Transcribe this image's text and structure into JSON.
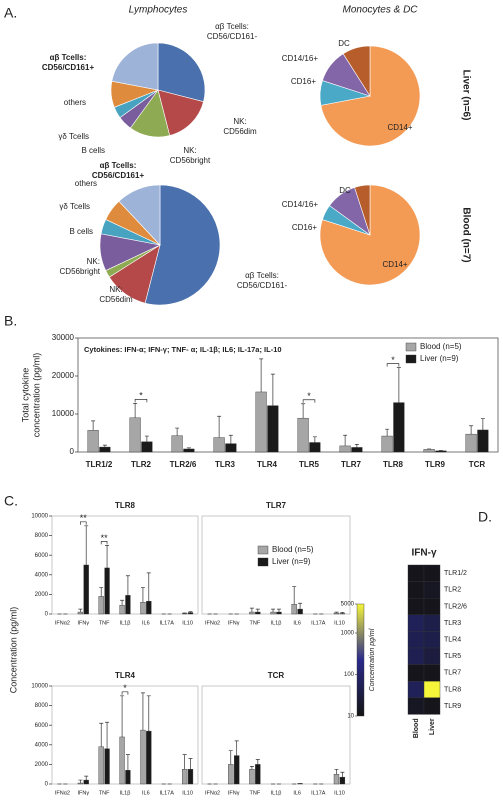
{
  "panel_labels": [
    "A.",
    "B.",
    "C.",
    "D."
  ],
  "panel_a": {
    "columns": [
      "Lymphocytes",
      "Monocytes & DC"
    ],
    "rows": [
      "Liver (n=6)",
      "Blood (n=7)"
    ]
  },
  "panel_c": {
    "ylabel": "Concentration (pg/ml)"
  },
  "chart_data": [
    {
      "type": "pie",
      "categories": [
        [
          "αβ Tcells:",
          "CD56/CD161-"
        ],
        [
          "NK:",
          "CD56dim"
        ],
        [
          "NK:",
          "CD56bright"
        ],
        [
          "B cells"
        ],
        [
          "γδ Tcells"
        ],
        [
          "others"
        ],
        [
          "αβ Tcells:",
          "CD56/CD161+"
        ]
      ],
      "values": [
        29,
        17,
        14,
        5,
        4,
        9,
        22
      ],
      "colors": [
        "#4a71ad",
        "#b5494a",
        "#8eab54",
        "#7a5d9d",
        "#47a3bf",
        "#df8b3d",
        "#9eb3d8"
      ]
    },
    {
      "type": "pie",
      "categories": [
        [
          "CD14+"
        ],
        [
          "CD16+"
        ],
        [
          "CD14/16+"
        ],
        [
          "DC"
        ]
      ],
      "values": [
        72,
        8,
        11,
        9
      ],
      "colors": [
        "#f39a55",
        "#4aa9c6",
        "#8266a8",
        "#b75d2b"
      ]
    },
    {
      "type": "pie",
      "categories": [
        [
          "αβ Tcells:",
          "CD56/CD161-"
        ],
        [
          "NK:",
          "CD56dim"
        ],
        [
          "NK:",
          "CD56bright"
        ],
        [
          "B cells"
        ],
        [
          "γδ Tcells"
        ],
        [
          "others"
        ],
        [
          "αβ Tcells:",
          "CD56/CD161+"
        ]
      ],
      "values": [
        54,
        12,
        2,
        10,
        4,
        6,
        12
      ],
      "colors": [
        "#4a71ad",
        "#b5494a",
        "#8eab54",
        "#7a5d9d",
        "#47a3bf",
        "#df8b3d",
        "#9eb3d8"
      ]
    },
    {
      "type": "pie",
      "categories": [
        [
          "CD14+"
        ],
        [
          "CD16+"
        ],
        [
          "CD14/16+"
        ],
        [
          "DC"
        ]
      ],
      "values": [
        80,
        5,
        10,
        5
      ],
      "colors": [
        "#f39a55",
        "#4aa9c6",
        "#8266a8",
        "#b75d2b"
      ]
    },
    {
      "type": "bar",
      "annotation": "Cytokines: IFN-α; IFN-γ; TNF- α; IL-1β; IL6; IL-17a; IL-10",
      "ylabel": [
        "Total cytokine",
        "concentration (pg/ml)"
      ],
      "categories": [
        "TLR1/2",
        "TLR2",
        "TLR2/6",
        "TLR3",
        "TLR4",
        "TLR5",
        "TLR7",
        "TLR8",
        "TLR9",
        "TCR"
      ],
      "series": [
        {
          "name": "Blood (n=5)",
          "color": "#a6a6a6",
          "values": [
            5700,
            9000,
            4300,
            3800,
            15800,
            8900,
            1600,
            4200,
            700,
            4700
          ],
          "errors": [
            2500,
            3800,
            2000,
            5600,
            8700,
            3800,
            2800,
            1800,
            100,
            2200
          ]
        },
        {
          "name": "Liver (n=9)",
          "color": "#1a1a1a",
          "values": [
            1300,
            2700,
            800,
            2200,
            12200,
            2500,
            1200,
            13000,
            300,
            5800
          ],
          "errors": [
            500,
            1500,
            300,
            2200,
            8300,
            1500,
            800,
            9200,
            100,
            3000
          ]
        }
      ],
      "significance": [
        null,
        "*",
        null,
        null,
        null,
        "*",
        null,
        "*",
        null,
        null
      ],
      "ylim": [
        0,
        30000
      ],
      "yticks": [
        0,
        10000,
        20000,
        30000
      ],
      "legend": "upper right"
    },
    {
      "type": "bar",
      "title": "TLR8",
      "categories": [
        "IFNα2",
        "IFNγ",
        "TNF",
        "IL1β",
        "IL6",
        "IL17A",
        "IL10"
      ],
      "series": [
        {
          "color": "#a6a6a6",
          "values": [
            0,
            200,
            1800,
            900,
            1200,
            0,
            50
          ],
          "errors": [
            0,
            300,
            900,
            500,
            1500,
            0,
            50
          ]
        },
        {
          "color": "#1a1a1a",
          "values": [
            0,
            5000,
            4700,
            1900,
            1300,
            0,
            150
          ],
          "errors": [
            0,
            4000,
            2300,
            2000,
            2900,
            0,
            100
          ]
        }
      ],
      "significance": [
        null,
        "**",
        "**",
        null,
        null,
        null,
        null
      ],
      "ylim": [
        0,
        10000
      ],
      "yticks": [
        0,
        2000,
        4000,
        6000,
        8000,
        10000
      ]
    },
    {
      "type": "bar",
      "title": "TLR7",
      "categories": [
        "IFNα2",
        "IFNγ",
        "TNF",
        "IL1β",
        "IL6",
        "IL17A",
        "IL10"
      ],
      "series": [
        {
          "name": "Blood (n=5)",
          "color": "#a6a6a6",
          "values": [
            0,
            0,
            200,
            200,
            1000,
            0,
            100
          ],
          "errors": [
            0,
            0,
            400,
            300,
            1800,
            0,
            100
          ]
        },
        {
          "name": "Liver (n=9)",
          "color": "#1a1a1a",
          "values": [
            0,
            0,
            200,
            200,
            500,
            0,
            50
          ],
          "errors": [
            0,
            0,
            300,
            300,
            600,
            0,
            100
          ]
        }
      ],
      "ylim": [
        0,
        10000
      ],
      "legend": "upper right"
    },
    {
      "type": "bar",
      "title": "TLR4",
      "categories": [
        "IFNα2",
        "IFNγ",
        "TNF",
        "IL1β",
        "IL6",
        "IL17A",
        "IL10"
      ],
      "series": [
        {
          "color": "#a6a6a6",
          "values": [
            0,
            100,
            3800,
            4800,
            5500,
            0,
            1500
          ],
          "errors": [
            0,
            300,
            2400,
            4200,
            3800,
            0,
            1500
          ]
        },
        {
          "color": "#1a1a1a",
          "values": [
            0,
            400,
            3600,
            1400,
            5400,
            0,
            1500
          ],
          "errors": [
            0,
            400,
            2700,
            1600,
            3600,
            0,
            1100
          ]
        }
      ],
      "significance": [
        null,
        null,
        null,
        "*",
        null,
        null,
        null
      ],
      "ylim": [
        0,
        10000
      ],
      "yticks": [
        0,
        2000,
        4000,
        6000,
        8000,
        10000
      ]
    },
    {
      "type": "bar",
      "title": "TCR",
      "categories": [
        "IFNα2",
        "IFNγ",
        "TNF",
        "IL1β",
        "IL6",
        "IL17A",
        "IL10"
      ],
      "series": [
        {
          "color": "#a6a6a6",
          "values": [
            0,
            2000,
            1500,
            0,
            0,
            0,
            1000
          ],
          "errors": [
            0,
            1400,
            300,
            0,
            0,
            0,
            500
          ]
        },
        {
          "color": "#1a1a1a",
          "values": [
            0,
            2900,
            2000,
            0,
            50,
            0,
            700
          ],
          "errors": [
            0,
            1500,
            500,
            0,
            0,
            0,
            500
          ]
        }
      ],
      "ylim": [
        0,
        10000
      ]
    },
    {
      "type": "heatmap",
      "title": "IFN-γ",
      "x": [
        "Blood",
        "Liver"
      ],
      "y": [
        "TLR1/2",
        "TLR2",
        "TLR2/6",
        "TLR3",
        "TLR4",
        "TLR5",
        "TLR7",
        "TLR8",
        "TLR9"
      ],
      "values": [
        [
          12,
          12
        ],
        [
          12,
          15
        ],
        [
          12,
          12
        ],
        [
          60,
          40
        ],
        [
          50,
          40
        ],
        [
          50,
          30
        ],
        [
          12,
          12
        ],
        [
          60,
          5000
        ],
        [
          15,
          12
        ]
      ],
      "zlim": [
        10,
        5000
      ],
      "zticks": [
        10,
        100,
        1000,
        5000
      ],
      "zlog": true,
      "zlabel": "Concentration pg/ml",
      "colors": [
        "#141414",
        "#2a2a8c",
        "#f5f53a"
      ]
    }
  ]
}
